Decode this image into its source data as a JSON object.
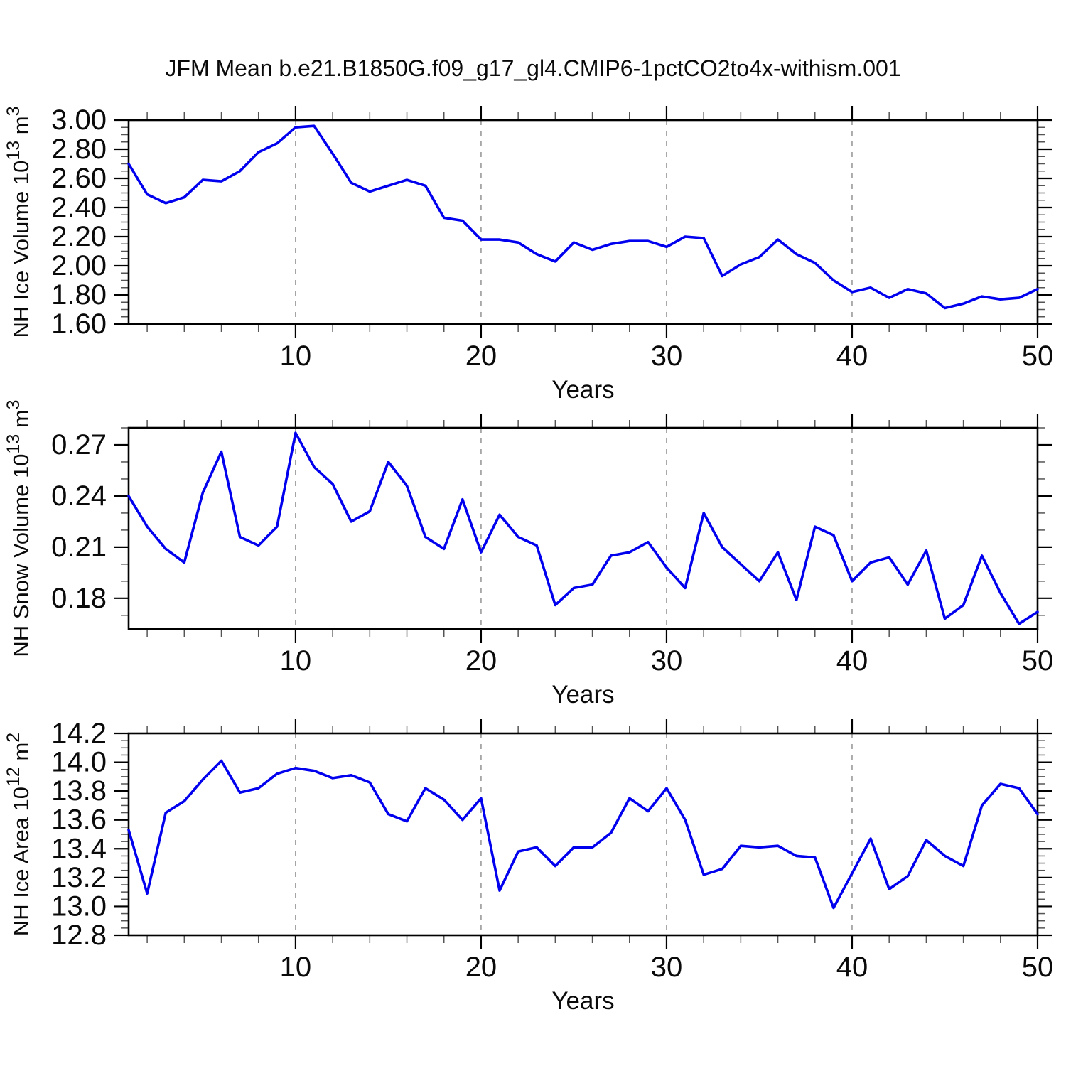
{
  "title": "JFM Mean b.e21.B1850G.f09_g17_gl4.CMIP6-1pctCO2to4x-withism.001",
  "colors": {
    "line": "#0000ee",
    "frame": "#000000",
    "grid": "#999999",
    "major_tick": "#000000",
    "minor_tick": "#555555",
    "text": "#0a0a0a",
    "background": "#ffffff"
  },
  "x_axis": {
    "label": "Years",
    "start": 1,
    "end": 50,
    "major_ticks": [
      10,
      20,
      30,
      40,
      50
    ],
    "minor_step": 2,
    "gridlines": [
      10,
      20,
      30,
      40
    ],
    "years": [
      1,
      2,
      3,
      4,
      5,
      6,
      7,
      8,
      9,
      10,
      11,
      12,
      13,
      14,
      15,
      16,
      17,
      18,
      19,
      20,
      21,
      22,
      23,
      24,
      25,
      26,
      27,
      28,
      29,
      30,
      31,
      32,
      33,
      34,
      35,
      36,
      37,
      38,
      39,
      40,
      41,
      42,
      43,
      44,
      45,
      46,
      47,
      48,
      49,
      50
    ]
  },
  "chart_data": [
    {
      "id": "ice-volume",
      "type": "line",
      "xlabel": "Years",
      "ylabel": {
        "text": "NH Ice Volume",
        "power_base": "10",
        "power_exp": "13",
        "unit": "m",
        "unit_exp": "3"
      },
      "ylim": [
        1.6,
        3.0
      ],
      "ytick_values": [
        1.6,
        1.8,
        2.0,
        2.2,
        2.4,
        2.6,
        2.8,
        3.0
      ],
      "ytick_labels": [
        "1.60",
        "1.80",
        "2.00",
        "2.20",
        "2.40",
        "2.60",
        "2.80",
        "3.00"
      ],
      "y_minor_step": 0.05,
      "grid_on": true,
      "legend": "none",
      "values": [
        2.7,
        2.49,
        2.43,
        2.47,
        2.59,
        2.58,
        2.65,
        2.78,
        2.84,
        2.95,
        2.96,
        2.77,
        2.57,
        2.51,
        2.55,
        2.59,
        2.55,
        2.33,
        2.31,
        2.18,
        2.18,
        2.16,
        2.08,
        2.03,
        2.16,
        2.11,
        2.15,
        2.17,
        2.17,
        2.13,
        2.2,
        2.19,
        1.93,
        2.01,
        2.06,
        2.18,
        2.08,
        2.02,
        1.9,
        1.82,
        1.85,
        1.78,
        1.84,
        1.81,
        1.71,
        1.74,
        1.79,
        1.77,
        1.78,
        1.84
      ]
    },
    {
      "id": "snow-volume",
      "type": "line",
      "xlabel": "Years",
      "ylabel": {
        "text": "NH Snow Volume",
        "power_base": "10",
        "power_exp": "13",
        "unit": "m",
        "unit_exp": "3"
      },
      "ylim": [
        0.162,
        0.28
      ],
      "ytick_values": [
        0.18,
        0.21,
        0.24,
        0.27
      ],
      "ytick_labels": [
        "0.18",
        "0.21",
        "0.24",
        "0.27"
      ],
      "y_minor_step": 0.01,
      "grid_on": true,
      "legend": "none",
      "values": [
        0.24,
        0.222,
        0.209,
        0.201,
        0.242,
        0.266,
        0.216,
        0.211,
        0.222,
        0.277,
        0.257,
        0.247,
        0.225,
        0.231,
        0.26,
        0.246,
        0.216,
        0.209,
        0.238,
        0.207,
        0.229,
        0.216,
        0.211,
        0.176,
        0.186,
        0.188,
        0.205,
        0.207,
        0.213,
        0.198,
        0.186,
        0.23,
        0.21,
        0.2,
        0.19,
        0.207,
        0.179,
        0.222,
        0.217,
        0.19,
        0.201,
        0.204,
        0.188,
        0.208,
        0.168,
        0.176,
        0.205,
        0.183,
        0.165,
        0.172
      ]
    },
    {
      "id": "ice-area",
      "type": "line",
      "xlabel": "Years",
      "ylabel": {
        "text": "NH Ice Area",
        "power_base": "10",
        "power_exp": "12",
        "unit": "m",
        "unit_exp": "2"
      },
      "ylim": [
        12.8,
        14.2
      ],
      "ytick_values": [
        12.8,
        13.0,
        13.2,
        13.4,
        13.6,
        13.8,
        14.0,
        14.2
      ],
      "ytick_labels": [
        "12.8",
        "13.0",
        "13.2",
        "13.4",
        "13.6",
        "13.8",
        "14.0",
        "14.2"
      ],
      "y_minor_step": 0.05,
      "grid_on": true,
      "legend": "none",
      "values": [
        13.53,
        13.09,
        13.65,
        13.73,
        13.88,
        14.01,
        13.79,
        13.82,
        13.92,
        13.96,
        13.94,
        13.89,
        13.91,
        13.86,
        13.64,
        13.59,
        13.82,
        13.74,
        13.6,
        13.75,
        13.11,
        13.38,
        13.41,
        13.28,
        13.41,
        13.41,
        13.51,
        13.75,
        13.66,
        13.82,
        13.6,
        13.22,
        13.26,
        13.42,
        13.41,
        13.42,
        13.35,
        13.34,
        12.99,
        13.23,
        13.47,
        13.12,
        13.21,
        13.46,
        13.35,
        13.28,
        13.7,
        13.85,
        13.82,
        13.64
      ]
    }
  ]
}
